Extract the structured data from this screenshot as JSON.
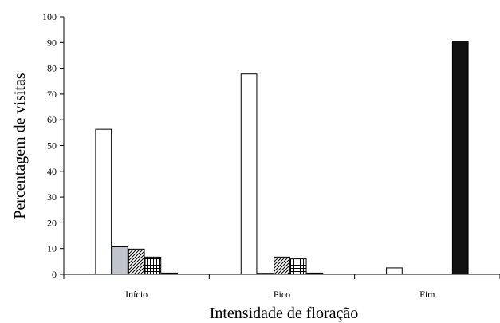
{
  "chart_data": {
    "type": "bar",
    "title": "",
    "xlabel": "Intensidade de floração",
    "ylabel": "Percentagem de visitas",
    "categories": [
      "Início",
      "Pico",
      "Fim"
    ],
    "ylim": [
      0,
      100
    ],
    "yticks": [
      0,
      10,
      20,
      30,
      40,
      50,
      60,
      70,
      80,
      90,
      100
    ],
    "grid": false,
    "legend": "none",
    "series": [
      {
        "fill": "#ffffff",
        "pattern": "none",
        "values": [
          56.3,
          77.8,
          2.5
        ]
      },
      {
        "fill": "#c0c4cc",
        "pattern": "none",
        "values": [
          10.7,
          0.4,
          0
        ]
      },
      {
        "fill": "#ffffff",
        "pattern": "diagonal-hatch",
        "values": [
          9.8,
          6.7,
          0
        ]
      },
      {
        "fill": "#ffffff",
        "pattern": "crosshatch",
        "values": [
          6.7,
          6.0,
          0
        ]
      },
      {
        "fill": "#111111",
        "pattern": "none",
        "values": [
          0.5,
          0.5,
          90.5
        ]
      }
    ]
  }
}
